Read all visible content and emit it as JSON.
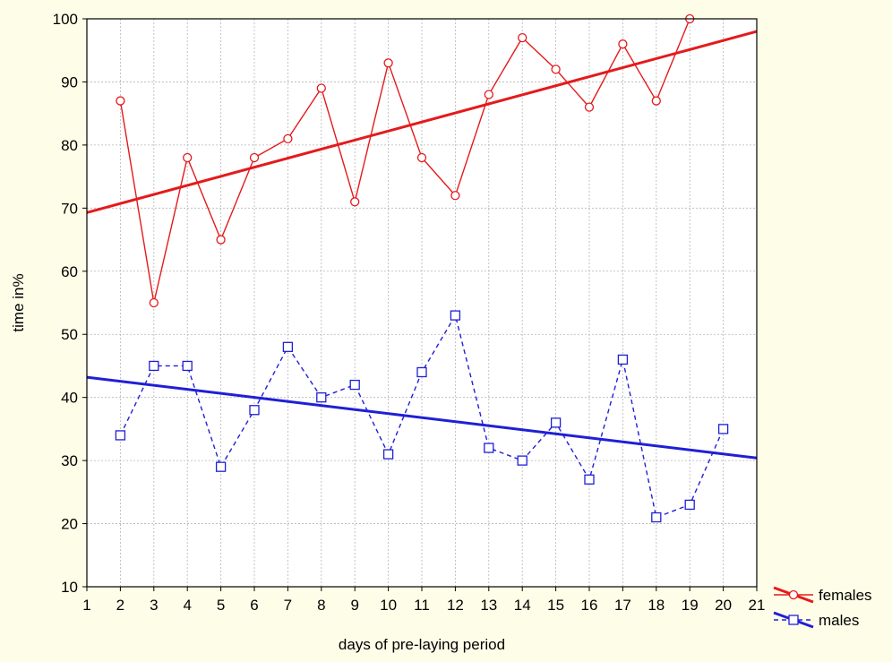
{
  "chart_data": {
    "type": "line",
    "title": "",
    "xlabel": "days of pre-laying period",
    "ylabel": "time in%",
    "xlim": [
      1,
      21
    ],
    "ylim": [
      10,
      100
    ],
    "x_ticks": [
      1,
      2,
      3,
      4,
      5,
      6,
      7,
      8,
      9,
      10,
      11,
      12,
      13,
      14,
      15,
      16,
      17,
      18,
      19,
      20,
      21
    ],
    "y_ticks": [
      10,
      20,
      30,
      40,
      50,
      60,
      70,
      80,
      90,
      100
    ],
    "grid": true,
    "legend_position": "bottom-right",
    "series": [
      {
        "name": "females",
        "color": "#E41A1C",
        "marker": "circle",
        "line_style": "solid",
        "x": [
          2,
          3,
          4,
          5,
          6,
          7,
          8,
          9,
          10,
          11,
          12,
          13,
          14,
          15,
          16,
          17,
          18,
          19
        ],
        "values": [
          87,
          55,
          78,
          65,
          78,
          81,
          89,
          71,
          93,
          78,
          72,
          88,
          97,
          92,
          86,
          96,
          87,
          100
        ],
        "trend": {
          "x": [
            1,
            21
          ],
          "y": [
            69.3,
            98
          ]
        }
      },
      {
        "name": "males",
        "color": "#1F1FD6",
        "marker": "square",
        "line_style": "dashed",
        "x": [
          2,
          3,
          4,
          5,
          6,
          7,
          8,
          9,
          10,
          11,
          12,
          13,
          14,
          15,
          16,
          17,
          18,
          19,
          20
        ],
        "values": [
          34,
          45,
          45,
          29,
          38,
          48,
          40,
          42,
          31,
          44,
          53,
          32,
          30,
          36,
          27,
          46,
          21,
          23,
          35
        ],
        "trend": {
          "x": [
            1,
            21
          ],
          "y": [
            43.2,
            30.4
          ]
        }
      }
    ]
  }
}
